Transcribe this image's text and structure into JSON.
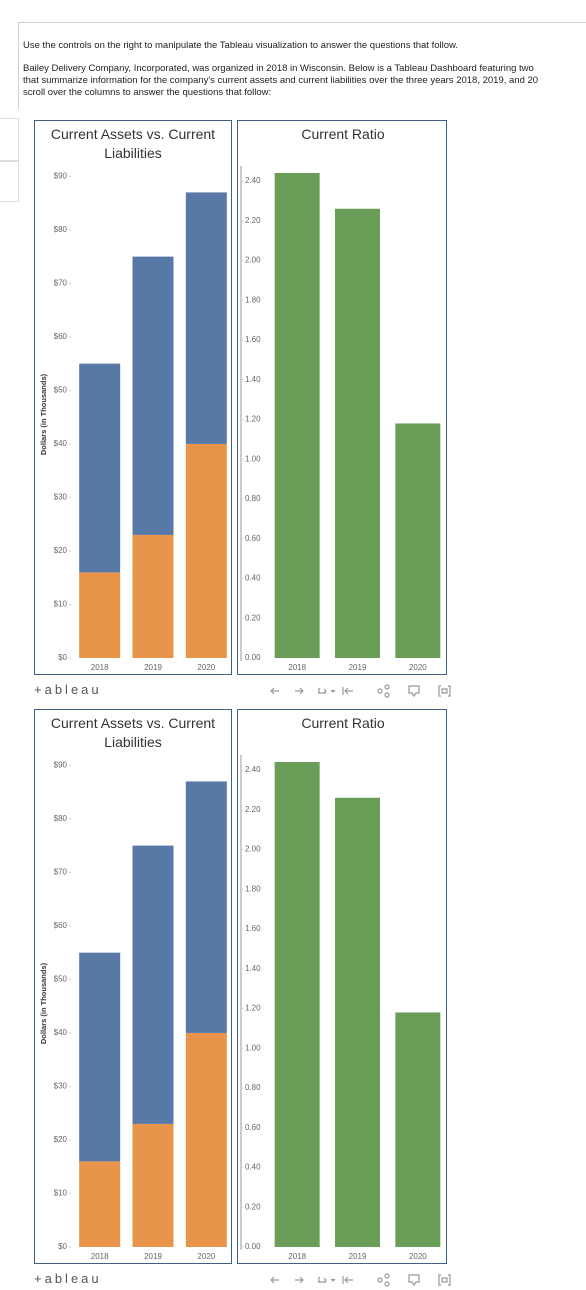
{
  "instructions": "Use the controls on the right to manipulate the Tableau visualization to answer the questions that follow.",
  "paragraph": [
    "Bailey Delivery Company, Incorporated, was organized in 2018 in Wisconsin. Below is a Tableau Dashboard featuring two",
    "that summarize information for the company's current assets and current liabilities over the three years 2018, 2019, and 20",
    "scroll over the columns to answer the questions that follow:"
  ],
  "brand": "+ableau",
  "chart_data": [
    {
      "type": "bar",
      "stacked": true,
      "title": "Current Assets vs. Current Liabilities",
      "y_label": "Dollars (in Thousands)",
      "categories": [
        "2018",
        "2019",
        "2020"
      ],
      "series": [
        {
          "color": "#e8944a",
          "values": [
            16,
            23,
            40
          ]
        },
        {
          "color": "#5879a6",
          "values": [
            39,
            52,
            47
          ]
        }
      ],
      "ylim": [
        0,
        91
      ],
      "yticks": [
        {
          "value": 0,
          "label": "$0"
        },
        {
          "value": 10,
          "label": "$10"
        },
        {
          "value": 20,
          "label": "$20"
        },
        {
          "value": 30,
          "label": "$30"
        },
        {
          "value": 40,
          "label": "$40"
        },
        {
          "value": 50,
          "label": "$50"
        },
        {
          "value": 60,
          "label": "$60"
        },
        {
          "value": 70,
          "label": "$70"
        },
        {
          "value": 80,
          "label": "$80"
        },
        {
          "value": 90,
          "label": "$90"
        }
      ]
    },
    {
      "type": "bar",
      "title": "Current Ratio",
      "categories": [
        "2018",
        "2019",
        "2020"
      ],
      "values": [
        2.44,
        2.26,
        1.18
      ],
      "color": "#6a9e58",
      "ylim": [
        0,
        2.45
      ],
      "yticks": [
        {
          "value": 0,
          "label": "0.00"
        },
        {
          "value": 0.2,
          "label": "0.20"
        },
        {
          "value": 0.4,
          "label": "0.40"
        },
        {
          "value": 0.6,
          "label": "0.60"
        },
        {
          "value": 0.8,
          "label": "0.80"
        },
        {
          "value": 1,
          "label": "1.00"
        },
        {
          "value": 1.2,
          "label": "1.20"
        },
        {
          "value": 1.4,
          "label": "1.40"
        },
        {
          "value": 1.6,
          "label": "1.60"
        },
        {
          "value": 1.8,
          "label": "1.80"
        },
        {
          "value": 2,
          "label": "2.00"
        },
        {
          "value": 2.2,
          "label": "2.20"
        },
        {
          "value": 2.4,
          "label": "2.40"
        }
      ]
    },
    {
      "type": "bar",
      "stacked": true,
      "title": "Current Assets vs. Current Liabilities",
      "y_label": "Dollars (in Thousands)",
      "categories": [
        "2018",
        "2019",
        "2020"
      ],
      "series": [
        {
          "color": "#e8944a",
          "values": [
            16,
            23,
            40
          ]
        },
        {
          "color": "#5879a6",
          "values": [
            39,
            52,
            47
          ]
        }
      ],
      "ylim": [
        0,
        91
      ],
      "yticks": [
        {
          "value": 0,
          "label": "$0"
        },
        {
          "value": 10,
          "label": "$10"
        },
        {
          "value": 20,
          "label": "$20"
        },
        {
          "value": 30,
          "label": "$30"
        },
        {
          "value": 40,
          "label": "$40"
        },
        {
          "value": 50,
          "label": "$50"
        },
        {
          "value": 60,
          "label": "$60"
        },
        {
          "value": 70,
          "label": "$70"
        },
        {
          "value": 80,
          "label": "$80"
        },
        {
          "value": 90,
          "label": "$90"
        }
      ]
    },
    {
      "type": "bar",
      "title": "Current Ratio",
      "categories": [
        "2018",
        "2019",
        "2020"
      ],
      "values": [
        2.44,
        2.26,
        1.18
      ],
      "color": "#6a9e58",
      "ylim": [
        0,
        2.45
      ],
      "yticks": [
        {
          "value": 0,
          "label": "0.00"
        },
        {
          "value": 0.2,
          "label": "0.20"
        },
        {
          "value": 0.4,
          "label": "0.40"
        },
        {
          "value": 0.6,
          "label": "0.60"
        },
        {
          "value": 0.8,
          "label": "0.80"
        },
        {
          "value": 1,
          "label": "1.00"
        },
        {
          "value": 1.2,
          "label": "1.20"
        },
        {
          "value": 1.4,
          "label": "1.40"
        },
        {
          "value": 1.6,
          "label": "1.60"
        },
        {
          "value": 1.8,
          "label": "1.80"
        },
        {
          "value": 2,
          "label": "2.00"
        },
        {
          "value": 2.2,
          "label": "2.20"
        },
        {
          "value": 2.4,
          "label": "2.40"
        }
      ]
    }
  ]
}
